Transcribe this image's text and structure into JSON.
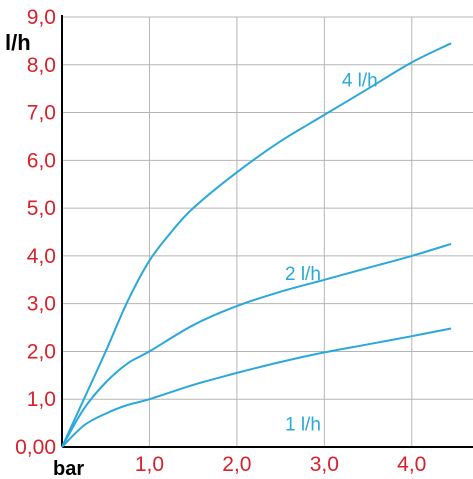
{
  "chart_data": {
    "type": "line",
    "ylabel": "l/h",
    "xlabel": "bar",
    "xlim": [
      0,
      4.7
    ],
    "ylim": [
      0,
      9
    ],
    "x_ticks": [
      "1,0",
      "2,0",
      "3,0",
      "4,0"
    ],
    "x_tick_values": [
      1,
      2,
      3,
      4
    ],
    "y_ticks": [
      "0,00",
      "1,0",
      "2,0",
      "3,0",
      "4,0",
      "5,0",
      "6,0",
      "7,0",
      "8,0",
      "9,0"
    ],
    "y_tick_values": [
      0,
      1,
      2,
      3,
      4,
      5,
      6,
      7,
      8,
      9
    ],
    "grid": true,
    "series": [
      {
        "name": "4 l/h",
        "x": [
          0,
          0.25,
          0.5,
          0.75,
          1.0,
          1.25,
          1.5,
          2.0,
          2.5,
          3.0,
          3.5,
          4.0,
          4.45
        ],
        "y": [
          0,
          1.0,
          2.0,
          3.05,
          3.9,
          4.5,
          5.0,
          5.75,
          6.4,
          6.95,
          7.5,
          8.05,
          8.45
        ],
        "label_pos": [
          3.2,
          7.55
        ]
      },
      {
        "name": "2 l/h",
        "x": [
          0,
          0.25,
          0.5,
          0.75,
          1.0,
          1.5,
          2.0,
          2.5,
          3.0,
          3.5,
          4.0,
          4.45
        ],
        "y": [
          0,
          0.8,
          1.35,
          1.75,
          2.0,
          2.55,
          2.95,
          3.25,
          3.5,
          3.75,
          4.0,
          4.25
        ],
        "label_pos": [
          2.55,
          3.5
        ]
      },
      {
        "name": "1 l/h",
        "x": [
          0,
          0.25,
          0.5,
          0.75,
          1.0,
          1.5,
          2.0,
          2.5,
          3.0,
          3.5,
          4.0,
          4.45
        ],
        "y": [
          0,
          0.45,
          0.7,
          0.88,
          1.0,
          1.3,
          1.55,
          1.78,
          1.98,
          2.15,
          2.32,
          2.48
        ],
        "label_pos": [
          2.55,
          0.35
        ]
      }
    ],
    "colors": {
      "curve": "#2aa8dc",
      "tick_label": "#d8212a",
      "grid": "#b5b5b5",
      "axis": "#000000"
    }
  }
}
